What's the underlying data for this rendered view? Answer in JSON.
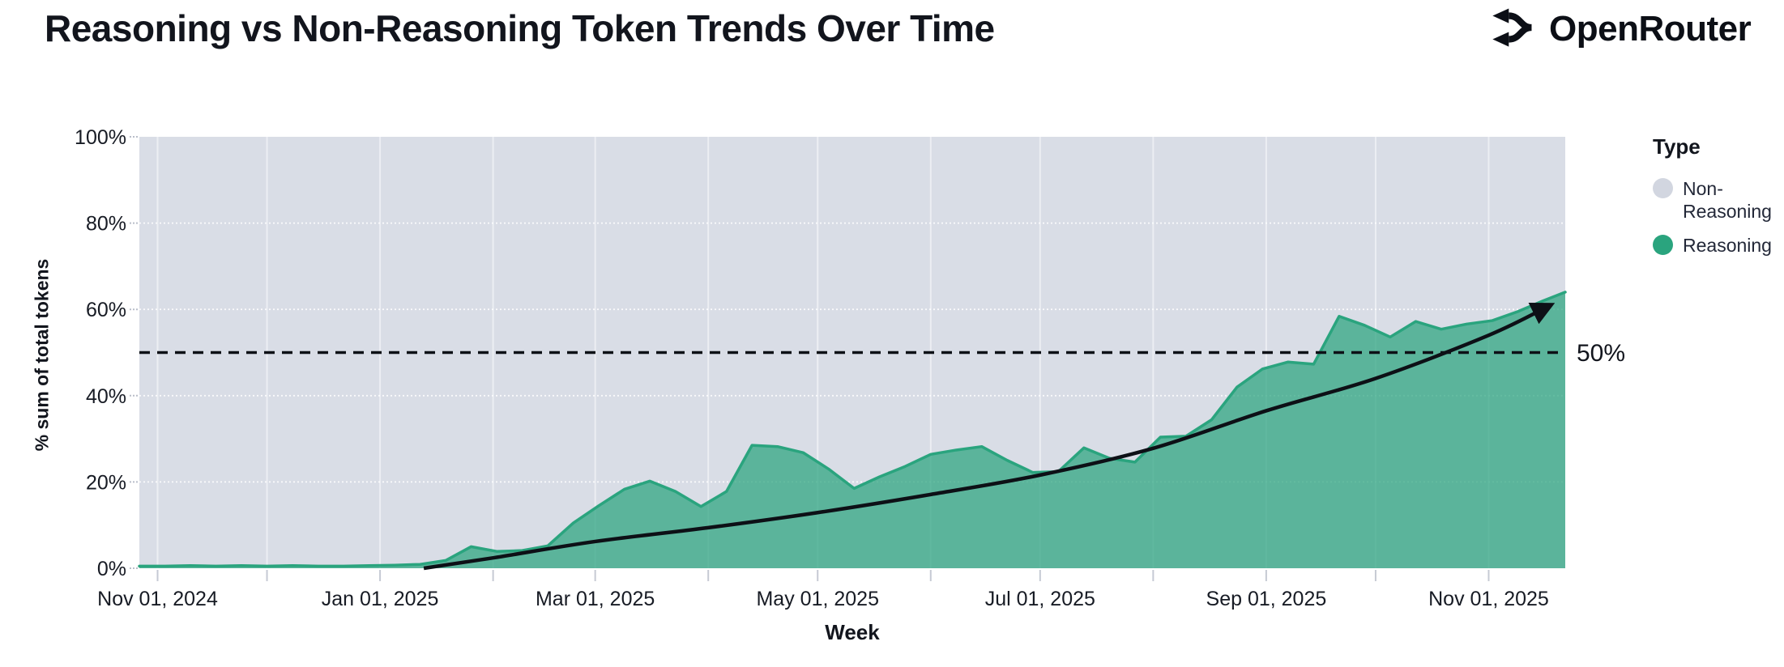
{
  "header": {
    "title": "Reasoning vs Non-Reasoning Token Trends Over Time",
    "brand": "OpenRouter"
  },
  "legend": {
    "title": "Type",
    "items": [
      {
        "label": "Non-Reasoning",
        "color": "#d2d6e0"
      },
      {
        "label": "Reasoning",
        "color": "#2aa47e"
      }
    ]
  },
  "theme": {
    "background": "#ffffff",
    "plot_bg": "#d9dde6",
    "accent_green": "#2aa47e",
    "area_fill_opacity": 0.72,
    "swatch_gray": "#d2d6e0",
    "text": "#171b24",
    "line_black": "#0d1016",
    "tick_mark": "#c6cad4"
  },
  "chart_data": {
    "type": "area",
    "stacked": true,
    "stack_mode": "percent",
    "title": "Reasoning vs Non-Reasoning Token Trends Over Time",
    "xlabel": "Week",
    "ylabel": "% sum of total tokens",
    "ylim": [
      0,
      100
    ],
    "grid": true,
    "legend_position": "right",
    "x_domain": [
      "2024-10-27",
      "2025-11-22"
    ],
    "y_ticks": [
      {
        "value": 0,
        "label": "0%"
      },
      {
        "value": 20,
        "label": "20%"
      },
      {
        "value": 40,
        "label": "40%"
      },
      {
        "value": 60,
        "label": "60%"
      },
      {
        "value": 80,
        "label": "80%"
      },
      {
        "value": 100,
        "label": "100%"
      }
    ],
    "x_ticks_labeled": [
      {
        "date": "2024-11-01",
        "label": "Nov 01, 2024"
      },
      {
        "date": "2025-01-01",
        "label": "Jan 01, 2025"
      },
      {
        "date": "2025-03-01",
        "label": "Mar 01, 2025"
      },
      {
        "date": "2025-05-01",
        "label": "May 01, 2025"
      },
      {
        "date": "2025-07-01",
        "label": "Jul 01, 2025"
      },
      {
        "date": "2025-09-01",
        "label": "Sep 01, 2025"
      },
      {
        "date": "2025-11-01",
        "label": "Nov 01, 2025"
      }
    ],
    "x_ticks_minor": [
      "2024-11-01",
      "2024-12-01",
      "2025-01-01",
      "2025-02-01",
      "2025-03-01",
      "2025-04-01",
      "2025-05-01",
      "2025-06-01",
      "2025-07-01",
      "2025-08-01",
      "2025-09-01",
      "2025-10-01",
      "2025-11-01"
    ],
    "x": [
      "2024-10-27",
      "2024-11-03",
      "2024-11-10",
      "2024-11-17",
      "2024-11-24",
      "2024-12-01",
      "2024-12-08",
      "2024-12-15",
      "2024-12-22",
      "2024-12-29",
      "2025-01-05",
      "2025-01-12",
      "2025-01-19",
      "2025-01-26",
      "2025-02-02",
      "2025-02-09",
      "2025-02-16",
      "2025-02-23",
      "2025-03-02",
      "2025-03-09",
      "2025-03-16",
      "2025-03-23",
      "2025-03-30",
      "2025-04-06",
      "2025-04-13",
      "2025-04-20",
      "2025-04-27",
      "2025-05-04",
      "2025-05-11",
      "2025-05-18",
      "2025-05-25",
      "2025-06-01",
      "2025-06-08",
      "2025-06-15",
      "2025-06-22",
      "2025-06-29",
      "2025-07-06",
      "2025-07-13",
      "2025-07-20",
      "2025-07-27",
      "2025-08-03",
      "2025-08-10",
      "2025-08-17",
      "2025-08-24",
      "2025-08-31",
      "2025-09-07",
      "2025-09-14",
      "2025-09-21",
      "2025-09-28",
      "2025-10-05",
      "2025-10-12",
      "2025-10-19",
      "2025-10-26",
      "2025-11-02",
      "2025-11-09",
      "2025-11-16",
      "2025-11-22"
    ],
    "series": [
      {
        "name": "Non-Reasoning",
        "color": "#d2d6e0",
        "values": [
          99.5,
          99.5,
          99.4,
          99.5,
          99.4,
          99.5,
          99.4,
          99.5,
          99.5,
          99.4,
          99.3,
          99.1,
          98.2,
          95.0,
          96.1,
          95.9,
          94.8,
          89.5,
          85.5,
          81.7,
          79.8,
          82.2,
          85.7,
          82.2,
          71.5,
          71.8,
          73.2,
          77.0,
          81.5,
          78.8,
          76.4,
          73.6,
          72.6,
          71.8,
          75.0,
          77.8,
          77.6,
          72.1,
          74.5,
          75.4,
          69.6,
          69.4,
          65.6,
          58.0,
          53.8,
          52.2,
          52.7,
          41.6,
          43.7,
          46.4,
          42.8,
          44.6,
          43.4,
          42.6,
          40.5,
          38.0,
          36.0
        ]
      },
      {
        "name": "Reasoning",
        "color": "#2aa47e",
        "values": [
          0.5,
          0.5,
          0.6,
          0.5,
          0.6,
          0.5,
          0.6,
          0.5,
          0.5,
          0.6,
          0.7,
          0.9,
          1.8,
          5.0,
          3.9,
          4.1,
          5.2,
          10.5,
          14.5,
          18.3,
          20.2,
          17.8,
          14.3,
          17.8,
          28.5,
          28.2,
          26.8,
          23.0,
          18.5,
          21.2,
          23.6,
          26.4,
          27.4,
          28.2,
          25.0,
          22.2,
          22.4,
          27.9,
          25.5,
          24.6,
          30.4,
          30.6,
          34.4,
          42.0,
          46.2,
          47.8,
          47.3,
          58.4,
          56.3,
          53.6,
          57.2,
          55.4,
          56.6,
          57.4,
          59.5,
          62.0,
          64.0
        ]
      }
    ],
    "annotations": {
      "reference_line": {
        "y": 50,
        "label": "50%",
        "style": "dashed",
        "color": "#0d1016"
      },
      "trend_arrow": {
        "color": "#0d1016",
        "points": [
          {
            "date": "2025-01-13",
            "value": 0
          },
          {
            "date": "2025-02-01",
            "value": 2.4
          },
          {
            "date": "2025-03-01",
            "value": 6.2
          },
          {
            "date": "2025-04-01",
            "value": 9.4
          },
          {
            "date": "2025-05-01",
            "value": 12.9
          },
          {
            "date": "2025-06-01",
            "value": 17.1
          },
          {
            "date": "2025-07-01",
            "value": 21.6
          },
          {
            "date": "2025-08-01",
            "value": 27.8
          },
          {
            "date": "2025-09-01",
            "value": 36.5
          },
          {
            "date": "2025-10-01",
            "value": 44.0
          },
          {
            "date": "2025-11-01",
            "value": 54.0
          },
          {
            "date": "2025-11-18",
            "value": 61.0
          }
        ]
      }
    }
  }
}
